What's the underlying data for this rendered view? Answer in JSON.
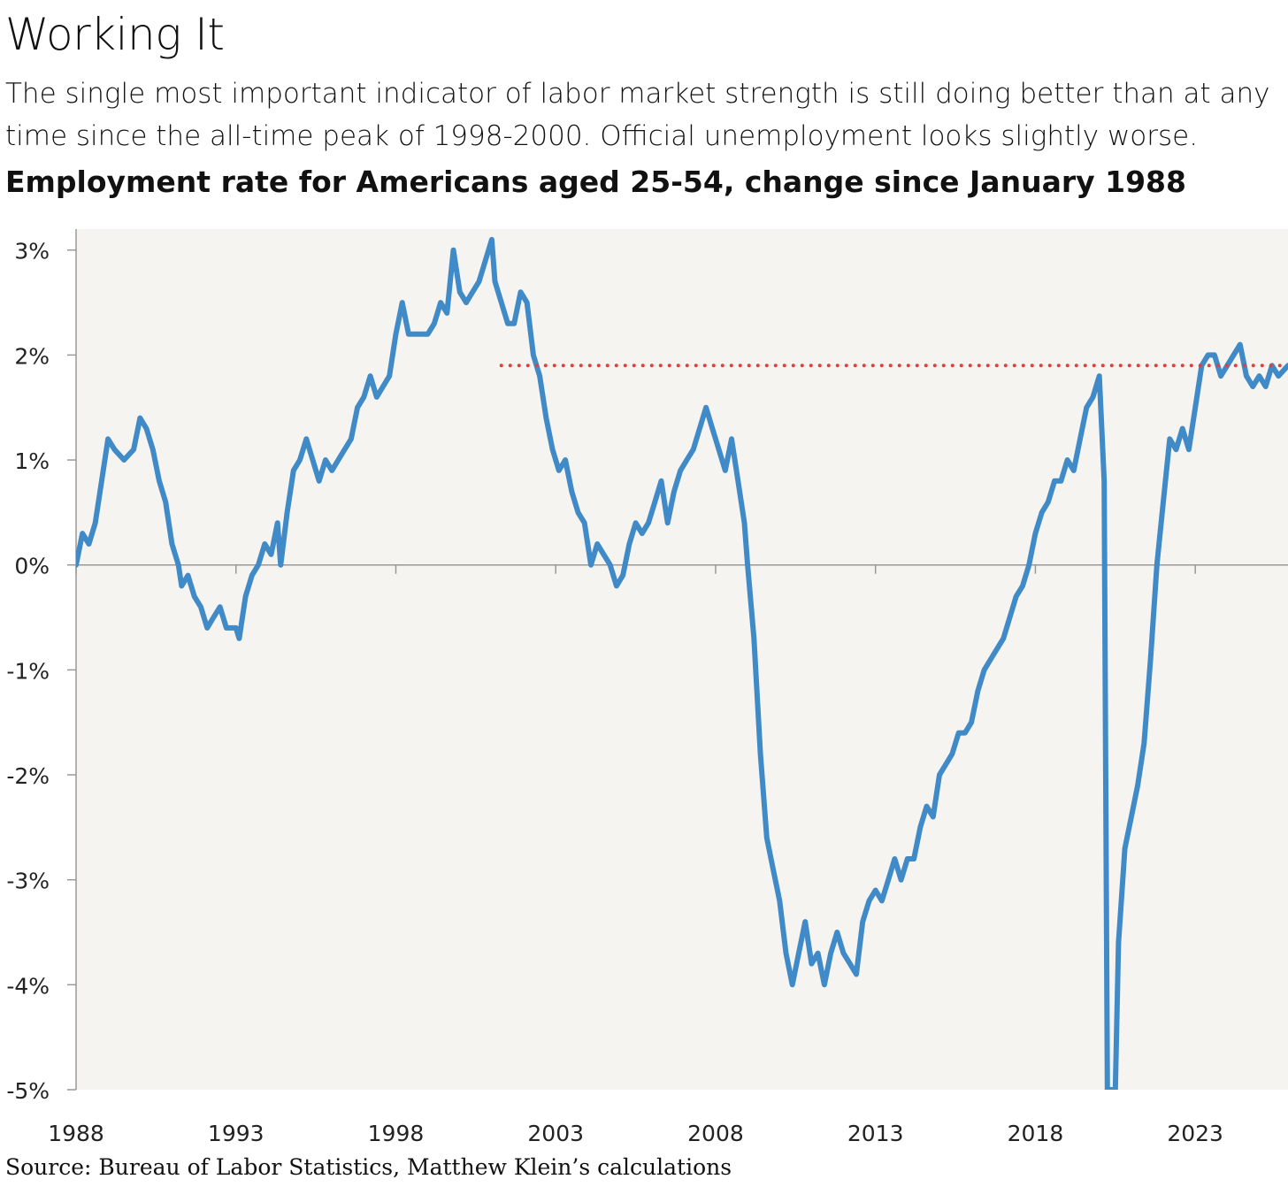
{
  "header": {
    "title": "Working It",
    "subtitle": "The single most important indicator of labor market strength is still doing better than at any time since the all-time peak of 1998-2000. Official unemployment looks slightly worse.",
    "chart_heading": "Employment rate for Americans aged 25-54, change since January 1988"
  },
  "footer": {
    "source": "Source: Bureau of Labor Statistics, Matthew Klein’s calculations"
  },
  "colors": {
    "line": "#3f8ac7",
    "reference": "#e0403a",
    "background": "#f6f4f1",
    "axis": "#999999"
  },
  "chart_data": {
    "type": "line",
    "title": "Employment rate for Americans aged 25-54, change since January 1988",
    "xlabel": "",
    "ylabel": "",
    "x_ticks": [
      1988,
      1993,
      1998,
      2003,
      2008,
      2013,
      2018,
      2023
    ],
    "x_tick_labels": [
      "1988",
      "1993",
      "1998",
      "2003",
      "2008",
      "2013",
      "2018",
      "2023"
    ],
    "y_ticks": [
      3,
      2,
      1,
      0,
      -1,
      -2,
      -3,
      -4,
      -5
    ],
    "y_tick_labels": [
      "3%",
      "2%",
      "1%",
      "0%",
      "-1%",
      "-2%",
      "-3%",
      "-4%",
      "-5%"
    ],
    "xlim": [
      1988,
      2025.9
    ],
    "ylim": [
      -5,
      3.2
    ],
    "grid": false,
    "zero_line": true,
    "reference_line": {
      "y": 1.9,
      "x_start": 2001.3,
      "x_end": 2025.9,
      "style": "dotted"
    },
    "series": [
      {
        "name": "Employment rate change since January 1988 (%)",
        "points": [
          [
            1988.0,
            0.0
          ],
          [
            1988.2,
            0.3
          ],
          [
            1988.4,
            0.2
          ],
          [
            1988.6,
            0.4
          ],
          [
            1988.8,
            0.8
          ],
          [
            1989.0,
            1.2
          ],
          [
            1989.2,
            1.1
          ],
          [
            1989.5,
            1.0
          ],
          [
            1989.8,
            1.1
          ],
          [
            1990.0,
            1.4
          ],
          [
            1990.2,
            1.3
          ],
          [
            1990.4,
            1.1
          ],
          [
            1990.6,
            0.8
          ],
          [
            1990.8,
            0.6
          ],
          [
            1991.0,
            0.2
          ],
          [
            1991.2,
            0.0
          ],
          [
            1991.3,
            -0.2
          ],
          [
            1991.5,
            -0.1
          ],
          [
            1991.7,
            -0.3
          ],
          [
            1991.9,
            -0.4
          ],
          [
            1992.1,
            -0.6
          ],
          [
            1992.3,
            -0.5
          ],
          [
            1992.5,
            -0.4
          ],
          [
            1992.7,
            -0.6
          ],
          [
            1993.0,
            -0.6
          ],
          [
            1993.1,
            -0.7
          ],
          [
            1993.3,
            -0.3
          ],
          [
            1993.5,
            -0.1
          ],
          [
            1993.7,
            0.0
          ],
          [
            1993.9,
            0.2
          ],
          [
            1994.1,
            0.1
          ],
          [
            1994.3,
            0.4
          ],
          [
            1994.4,
            0.0
          ],
          [
            1994.6,
            0.5
          ],
          [
            1994.8,
            0.9
          ],
          [
            1995.0,
            1.0
          ],
          [
            1995.2,
            1.2
          ],
          [
            1995.4,
            1.0
          ],
          [
            1995.6,
            0.8
          ],
          [
            1995.8,
            1.0
          ],
          [
            1996.0,
            0.9
          ],
          [
            1996.2,
            1.0
          ],
          [
            1996.4,
            1.1
          ],
          [
            1996.6,
            1.2
          ],
          [
            1996.8,
            1.5
          ],
          [
            1997.0,
            1.6
          ],
          [
            1997.2,
            1.8
          ],
          [
            1997.4,
            1.6
          ],
          [
            1997.6,
            1.7
          ],
          [
            1997.8,
            1.8
          ],
          [
            1998.0,
            2.2
          ],
          [
            1998.2,
            2.5
          ],
          [
            1998.4,
            2.2
          ],
          [
            1998.7,
            2.2
          ],
          [
            1999.0,
            2.2
          ],
          [
            1999.2,
            2.3
          ],
          [
            1999.4,
            2.5
          ],
          [
            1999.6,
            2.4
          ],
          [
            1999.8,
            3.0
          ],
          [
            2000.0,
            2.6
          ],
          [
            2000.2,
            2.5
          ],
          [
            2000.4,
            2.6
          ],
          [
            2000.6,
            2.7
          ],
          [
            2000.8,
            2.9
          ],
          [
            2001.0,
            3.1
          ],
          [
            2001.1,
            2.7
          ],
          [
            2001.3,
            2.5
          ],
          [
            2001.5,
            2.3
          ],
          [
            2001.7,
            2.3
          ],
          [
            2001.9,
            2.6
          ],
          [
            2002.1,
            2.5
          ],
          [
            2002.3,
            2.0
          ],
          [
            2002.5,
            1.8
          ],
          [
            2002.7,
            1.4
          ],
          [
            2002.9,
            1.1
          ],
          [
            2003.1,
            0.9
          ],
          [
            2003.3,
            1.0
          ],
          [
            2003.5,
            0.7
          ],
          [
            2003.7,
            0.5
          ],
          [
            2003.9,
            0.4
          ],
          [
            2004.1,
            0.0
          ],
          [
            2004.3,
            0.2
          ],
          [
            2004.5,
            0.1
          ],
          [
            2004.7,
            0.0
          ],
          [
            2004.9,
            -0.2
          ],
          [
            2005.1,
            -0.1
          ],
          [
            2005.3,
            0.2
          ],
          [
            2005.5,
            0.4
          ],
          [
            2005.7,
            0.3
          ],
          [
            2005.9,
            0.4
          ],
          [
            2006.1,
            0.6
          ],
          [
            2006.3,
            0.8
          ],
          [
            2006.5,
            0.4
          ],
          [
            2006.7,
            0.7
          ],
          [
            2006.9,
            0.9
          ],
          [
            2007.1,
            1.0
          ],
          [
            2007.3,
            1.1
          ],
          [
            2007.5,
            1.3
          ],
          [
            2007.7,
            1.5
          ],
          [
            2007.9,
            1.3
          ],
          [
            2008.1,
            1.1
          ],
          [
            2008.3,
            0.9
          ],
          [
            2008.5,
            1.2
          ],
          [
            2008.7,
            0.8
          ],
          [
            2008.9,
            0.4
          ],
          [
            2009.0,
            0.0
          ],
          [
            2009.2,
            -0.7
          ],
          [
            2009.4,
            -1.8
          ],
          [
            2009.6,
            -2.6
          ],
          [
            2009.8,
            -2.9
          ],
          [
            2010.0,
            -3.2
          ],
          [
            2010.2,
            -3.7
          ],
          [
            2010.4,
            -4.0
          ],
          [
            2010.6,
            -3.7
          ],
          [
            2010.8,
            -3.4
          ],
          [
            2011.0,
            -3.8
          ],
          [
            2011.2,
            -3.7
          ],
          [
            2011.4,
            -4.0
          ],
          [
            2011.6,
            -3.7
          ],
          [
            2011.8,
            -3.5
          ],
          [
            2012.0,
            -3.7
          ],
          [
            2012.2,
            -3.8
          ],
          [
            2012.4,
            -3.9
          ],
          [
            2012.6,
            -3.4
          ],
          [
            2012.8,
            -3.2
          ],
          [
            2013.0,
            -3.1
          ],
          [
            2013.2,
            -3.2
          ],
          [
            2013.4,
            -3.0
          ],
          [
            2013.6,
            -2.8
          ],
          [
            2013.8,
            -3.0
          ],
          [
            2014.0,
            -2.8
          ],
          [
            2014.2,
            -2.8
          ],
          [
            2014.4,
            -2.5
          ],
          [
            2014.6,
            -2.3
          ],
          [
            2014.8,
            -2.4
          ],
          [
            2015.0,
            -2.0
          ],
          [
            2015.2,
            -1.9
          ],
          [
            2015.4,
            -1.8
          ],
          [
            2015.6,
            -1.6
          ],
          [
            2015.8,
            -1.6
          ],
          [
            2016.0,
            -1.5
          ],
          [
            2016.2,
            -1.2
          ],
          [
            2016.4,
            -1.0
          ],
          [
            2016.6,
            -0.9
          ],
          [
            2016.8,
            -0.8
          ],
          [
            2017.0,
            -0.7
          ],
          [
            2017.2,
            -0.5
          ],
          [
            2017.4,
            -0.3
          ],
          [
            2017.6,
            -0.2
          ],
          [
            2017.8,
            0.0
          ],
          [
            2018.0,
            0.3
          ],
          [
            2018.2,
            0.5
          ],
          [
            2018.4,
            0.6
          ],
          [
            2018.6,
            0.8
          ],
          [
            2018.8,
            0.8
          ],
          [
            2019.0,
            1.0
          ],
          [
            2019.2,
            0.9
          ],
          [
            2019.4,
            1.2
          ],
          [
            2019.6,
            1.5
          ],
          [
            2019.8,
            1.6
          ],
          [
            2020.0,
            1.8
          ],
          [
            2020.15,
            0.8
          ],
          [
            2020.25,
            -5.0
          ],
          [
            2020.5,
            -5.0
          ],
          [
            2020.6,
            -3.6
          ],
          [
            2020.8,
            -2.7
          ],
          [
            2021.0,
            -2.4
          ],
          [
            2021.2,
            -2.1
          ],
          [
            2021.4,
            -1.7
          ],
          [
            2021.6,
            -0.9
          ],
          [
            2021.8,
            0.0
          ],
          [
            2022.0,
            0.6
          ],
          [
            2022.2,
            1.2
          ],
          [
            2022.4,
            1.1
          ],
          [
            2022.6,
            1.3
          ],
          [
            2022.8,
            1.1
          ],
          [
            2023.0,
            1.5
          ],
          [
            2023.2,
            1.9
          ],
          [
            2023.4,
            2.0
          ],
          [
            2023.6,
            2.0
          ],
          [
            2023.8,
            1.8
          ],
          [
            2024.0,
            1.9
          ],
          [
            2024.2,
            2.0
          ],
          [
            2024.4,
            2.1
          ],
          [
            2024.6,
            1.8
          ],
          [
            2024.8,
            1.7
          ],
          [
            2025.0,
            1.8
          ],
          [
            2025.2,
            1.7
          ],
          [
            2025.4,
            1.9
          ],
          [
            2025.6,
            1.8
          ],
          [
            2025.9,
            1.9
          ]
        ]
      }
    ]
  }
}
